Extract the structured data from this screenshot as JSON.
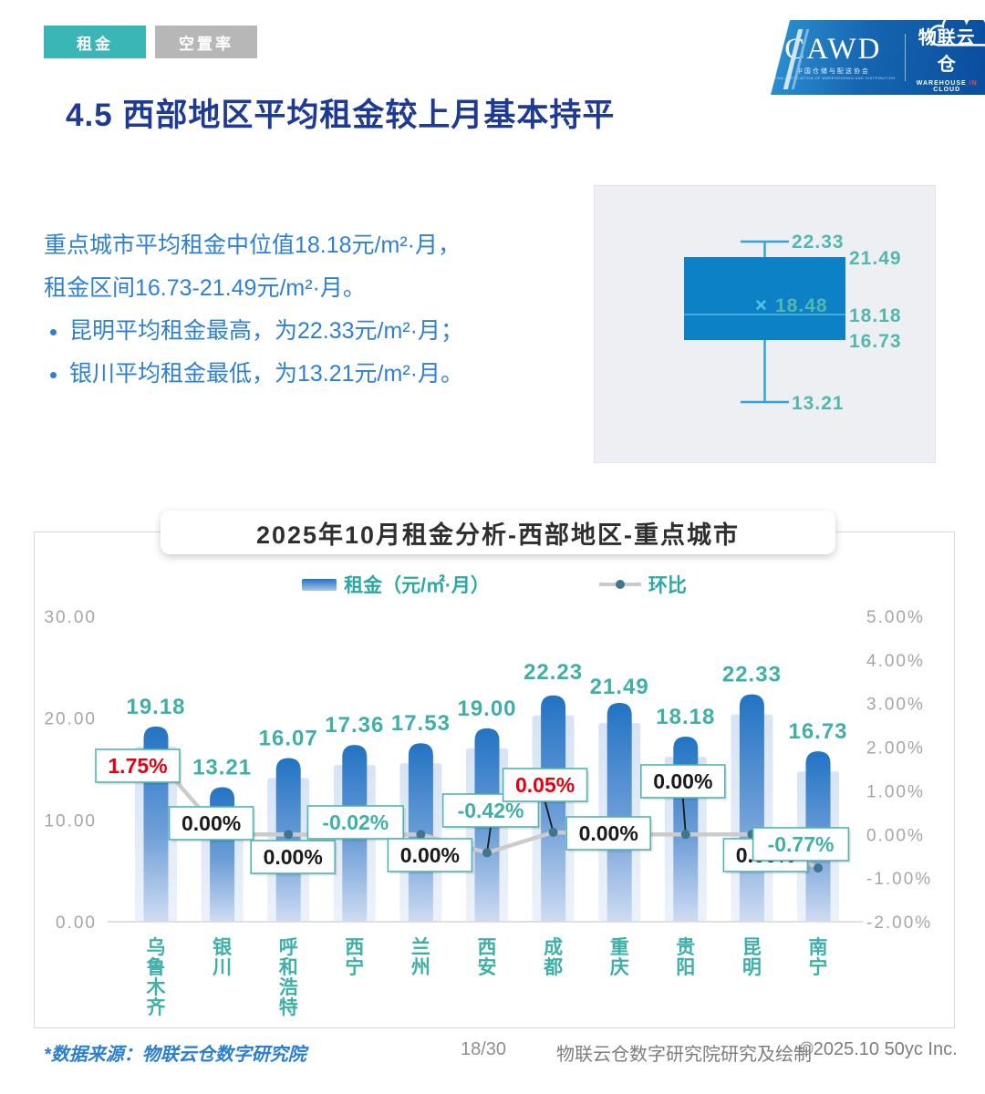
{
  "tabs": [
    {
      "label": "租金",
      "active": true
    },
    {
      "label": "空置率",
      "active": false
    }
  ],
  "logo": {
    "cawd": "CAWD",
    "cawd_sub_cn": "中国仓储与配送协会",
    "cawd_sub_en": "CHINA ASSOCIATION OF WAREHOUSING AND DISTRIBUTION",
    "brand": "物联云仓",
    "arrow_icon": "↗",
    "brand_sub_1": "WAREHOUSE",
    "brand_sub_2": "IN",
    "brand_sub_3": "CLOUD"
  },
  "page_title": "4.5 西部地区平均租金较上月基本持平",
  "summary": {
    "line1": "重点城市平均租金中位值18.18元/m²·月，",
    "line2": "租金区间16.73-21.49元/m²·月。",
    "bullets": [
      "昆明平均租金最高，为22.33元/m²·月；",
      "银川平均租金最低，为13.21元/m²·月。"
    ]
  },
  "theme": {
    "teal_text": "#3fafa8",
    "red_text": "#e60012",
    "black_text": "#1a1a1a",
    "bar_top": "#2273c4",
    "bar_bottom": "#cfdcf2",
    "band_top": "#b6cdeb",
    "band_bottom": "#dbe5f5",
    "line_gray": "#cbcbcb",
    "dot_color": "#40758f",
    "callout_border": "#4db5b3",
    "box_blue": "#0c81c6",
    "whisker_blue": "#2ba6e0",
    "tab_teal": "#3ab6b6",
    "tab_gray": "#b7b7b7"
  },
  "chart_data": [
    {
      "type": "bar+line",
      "title": "2025年10月租金分析-西部地区-重点城市",
      "categories": [
        "乌鲁木齐",
        "银川",
        "呼和浩特",
        "西宁",
        "兰州",
        "西安",
        "成都",
        "重庆",
        "贵阳",
        "昆明",
        "南宁"
      ],
      "series": [
        {
          "name": "租金（元/㎡·月）",
          "type": "bar",
          "axis": "left",
          "values": [
            19.18,
            13.21,
            16.07,
            17.36,
            17.53,
            19.0,
            22.23,
            21.49,
            18.18,
            22.33,
            16.73
          ],
          "labels": [
            "19.18",
            "13.21",
            "16.07",
            "17.36",
            "17.53",
            "19.00",
            "22.23",
            "21.49",
            "18.18",
            "22.33",
            "16.73"
          ]
        },
        {
          "name": "环比",
          "type": "line",
          "axis": "right",
          "values": [
            1.75,
            0.0,
            0.0,
            -0.02,
            0.0,
            -0.42,
            0.05,
            0.0,
            0.0,
            0.0,
            -0.77
          ],
          "labels": [
            "1.75%",
            "0.00%",
            "0.00%",
            "-0.02%",
            "0.00%",
            "-0.42%",
            "0.05%",
            "0.00%",
            "0.00%",
            "0.00%",
            "-0.77%"
          ],
          "label_colors": [
            "red",
            "black",
            "black",
            "teal",
            "black",
            "teal",
            "red",
            "black",
            "black",
            "black",
            "teal"
          ]
        }
      ],
      "left_axis": {
        "ticks": [
          "30.00",
          "20.00",
          "10.00",
          "0.00"
        ],
        "range": [
          0,
          30
        ]
      },
      "right_axis": {
        "ticks": [
          "5.00%",
          "4.00%",
          "3.00%",
          "2.00%",
          "1.00%",
          "0.00%",
          "-1.00%",
          "-2.00%"
        ],
        "range": [
          -2,
          5
        ]
      },
      "legend_position": "top",
      "grid": false,
      "layout_hints": {
        "callouts": [
          {
            "dx": -20,
            "y": 256
          },
          {
            "dx": -12,
            "y": 319
          },
          {
            "dx": 5,
            "y": 356
          },
          {
            "dx": 1,
            "y": 318
          },
          {
            "dx": 10,
            "y": 354
          },
          {
            "dx": 4,
            "y": 305
          },
          {
            "dx": -9,
            "y": 277
          },
          {
            "dx": -12,
            "y": 330
          },
          {
            "dx": -3,
            "y": 273
          },
          {
            "dx": 15,
            "y": 354
          },
          {
            "dx": -19,
            "y": 342
          }
        ],
        "leader_indices": [
          5,
          6,
          8
        ],
        "value_label_dy": [
          0,
          0,
          0,
          0,
          0,
          0,
          -4,
          4,
          0,
          0,
          0
        ]
      }
    },
    {
      "type": "boxplot",
      "values": {
        "max": 22.33,
        "q3": 21.49,
        "median": 18.18,
        "mean": 18.48,
        "q1": 16.73,
        "min": 13.21
      },
      "labels": {
        "max": "22.33",
        "q3": "21.49",
        "median": "18.18",
        "mean": "18.48",
        "q1": "16.73",
        "min": "13.21",
        "mean_marker": "×"
      }
    }
  ],
  "footer": {
    "source": "*数据来源：物联云仓数字研究院",
    "page": "18/30",
    "credit": "物联云仓数字研究院研究及绘制",
    "copyright": "©2025.10 50yc Inc."
  }
}
